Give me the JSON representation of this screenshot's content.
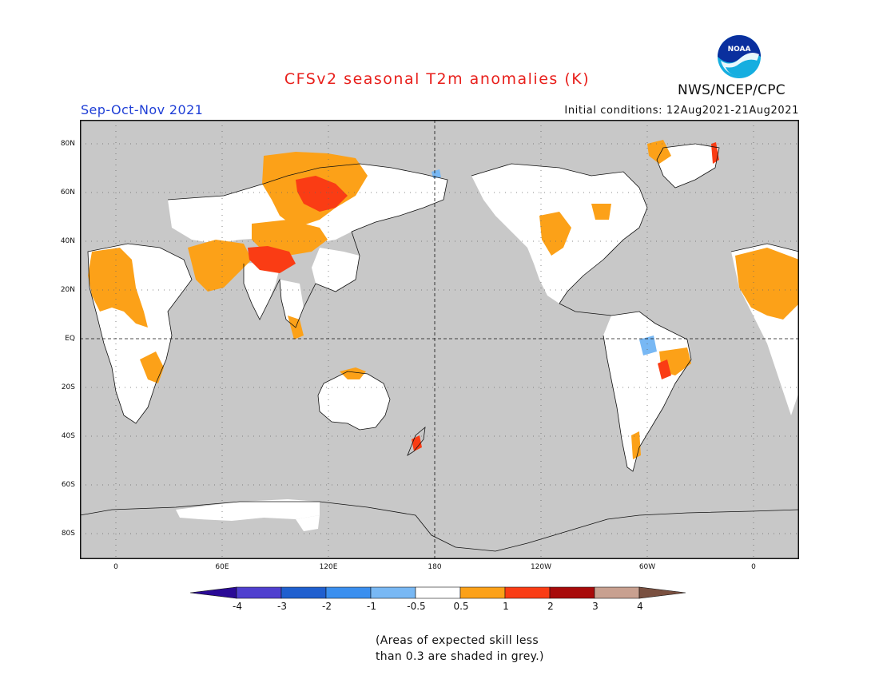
{
  "header": {
    "title": "CFSv2 seasonal T2m anomalies (K)",
    "agency": "NWS/NCEP/CPC",
    "logo_text": "NOAA",
    "season": "Sep-Oct-Nov 2021",
    "initial_conditions": "Initial conditions: 12Aug2021-21Aug2021"
  },
  "map": {
    "projection": "cylindrical equidistant, centered 180",
    "lat_labels": [
      "80N",
      "60N",
      "40N",
      "20N",
      "EQ",
      "20S",
      "40S",
      "60S",
      "80S"
    ],
    "lon_labels": [
      "0",
      "60E",
      "120E",
      "180",
      "120W",
      "60W",
      "0"
    ],
    "grid": "dotted",
    "background_color": "#c8c8c8",
    "regions": [
      {
        "area": "Northern Africa / Sahara",
        "category": "0.5 to 1"
      },
      {
        "area": "Arabian Peninsula / Iran",
        "category": "0.5 to 1"
      },
      {
        "area": "Central Siberia",
        "category": "1 to 2"
      },
      {
        "area": "Tibetan Plateau",
        "category": "1 to 2"
      },
      {
        "area": "Western USA",
        "category": "0.5 to 1"
      },
      {
        "area": "Eastern Brazil",
        "category": "1 to 2"
      },
      {
        "area": "Amazon basin",
        "category": "-1 to -0.5"
      },
      {
        "area": "Northern Australia",
        "category": "0.5 to 1"
      },
      {
        "area": "New Zealand",
        "category": "1 to 2"
      },
      {
        "area": "Greenland east coast",
        "category": "1 to 2"
      }
    ]
  },
  "legend": {
    "colors": [
      "#2a0a96",
      "#4f3fcf",
      "#1f5fcf",
      "#3a8fef",
      "#78b8f4",
      "#ffffff",
      "#fca118",
      "#fa3c14",
      "#a80a0a",
      "#c8a090",
      "#7a5040"
    ],
    "tick_labels": [
      "-4",
      "-3",
      "-2",
      "-1",
      "-0.5",
      "0.5",
      "1",
      "2",
      "3",
      "4"
    ],
    "note_line1": "(Areas of expected skill less",
    "note_line2": "than 0.3 are shaded in grey.)"
  }
}
